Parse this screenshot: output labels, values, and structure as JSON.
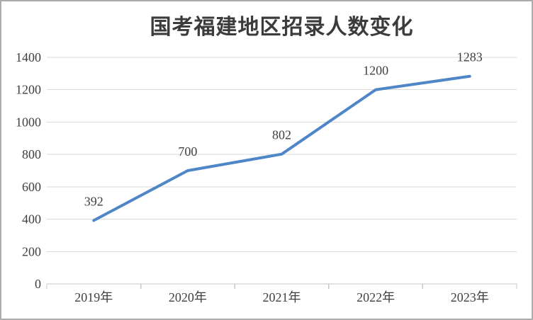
{
  "frame": {
    "background": "#ffffff",
    "border_color": "#ababab"
  },
  "chart_data": {
    "type": "line",
    "title": "国考福建地区招录人数变化",
    "categories": [
      "2019年",
      "2020年",
      "2021年",
      "2022年",
      "2023年"
    ],
    "values": [
      392,
      700,
      802,
      1200,
      1283
    ],
    "data_labels": [
      "392",
      "700",
      "802",
      "1200",
      "1283"
    ],
    "data_labels_visible": true,
    "xlabel": "",
    "ylabel": "",
    "ylim": [
      0,
      1400
    ],
    "ytick_step": 200,
    "ytick_labels": [
      "0",
      "200",
      "400",
      "600",
      "800",
      "1000",
      "1200",
      "1400"
    ],
    "grid": true,
    "legend": "none",
    "colors": {
      "line": "#4e86c8",
      "gridline": "#d9d9d9",
      "axis": "#c6c6c6",
      "tick_text": "#404040",
      "data_label_text": "#404040",
      "title_text": "#3b3b3b"
    }
  }
}
